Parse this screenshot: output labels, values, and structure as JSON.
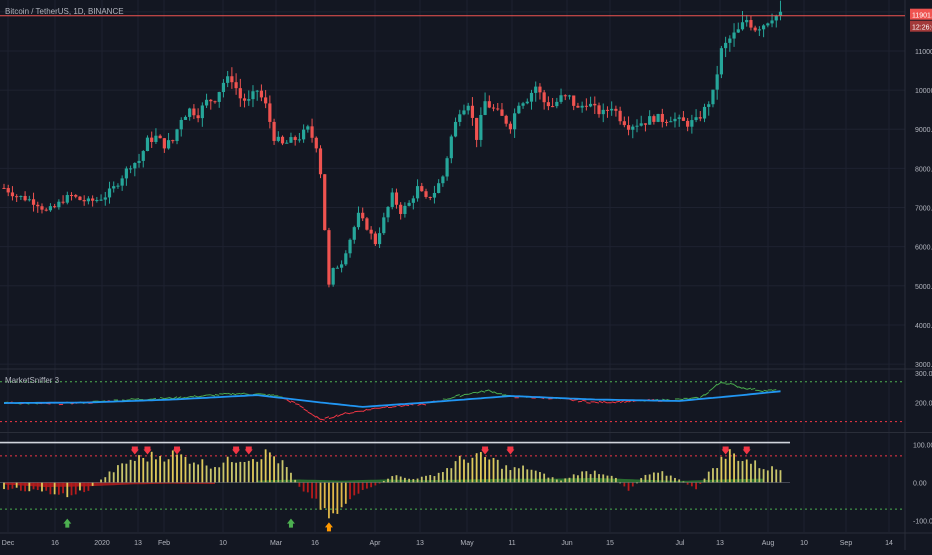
{
  "symbol_title": "Bitcoin / TetherUS, 1D, BINANCE",
  "indicator_title": "MarketSniffer 3",
  "last_price": "11901.30",
  "countdown": "12:26:01",
  "colors": {
    "background": "#131722",
    "grid": "#1e2230",
    "up": "#26a69a",
    "down": "#ef5350",
    "price_line": "#ef5350",
    "text": "#b2b5be",
    "osc_green": "#4caf50",
    "osc_red": "#f23645",
    "osc_blue": "#2196f3",
    "hist_yellow": "#e0c95a",
    "hist_area_green": "#2e7d32",
    "hist_area_red": "#b71c1c",
    "arrow_red": "#f23645",
    "arrow_green": "#4caf50",
    "arrow_orange": "#ff9800"
  },
  "chart_data": [
    {
      "type": "candlestick",
      "title": "Bitcoin / TetherUS, 1D, BINANCE",
      "y_ticks": [
        "12000.00",
        "11000.00",
        "10000.00",
        "9000.00",
        "8000.00",
        "7000.00",
        "6000.00",
        "5000.00",
        "4000.00",
        "3000.00"
      ],
      "ylim": [
        2900,
        12200
      ],
      "x_ticks": [
        "Dec",
        "16",
        "2020",
        "13",
        "Feb",
        "10",
        "Mar",
        "16",
        "Apr",
        "13",
        "May",
        "11",
        "Jun",
        "15",
        "Jul",
        "13",
        "Aug",
        "10",
        "Sep",
        "14"
      ],
      "last_price": 11901.3,
      "price_series_close_approx": [
        [
          0,
          7500
        ],
        [
          3,
          7300
        ],
        [
          6,
          7200
        ],
        [
          8,
          7100
        ],
        [
          10,
          6900
        ],
        [
          12,
          7000
        ],
        [
          14,
          7200
        ],
        [
          16,
          7300
        ],
        [
          18,
          7200
        ],
        [
          20,
          7150
        ],
        [
          22,
          7200
        ],
        [
          24,
          7300
        ],
        [
          26,
          7500
        ],
        [
          28,
          7800
        ],
        [
          30,
          8100
        ],
        [
          32,
          8200
        ],
        [
          34,
          8700
        ],
        [
          36,
          8800
        ],
        [
          38,
          8600
        ],
        [
          40,
          8700
        ],
        [
          42,
          9300
        ],
        [
          44,
          9500
        ],
        [
          46,
          9400
        ],
        [
          48,
          9700
        ],
        [
          50,
          9800
        ],
        [
          52,
          10200
        ],
        [
          54,
          10300
        ],
        [
          56,
          9800
        ],
        [
          58,
          9700
        ],
        [
          60,
          10000
        ],
        [
          62,
          9600
        ],
        [
          64,
          8800
        ],
        [
          66,
          8600
        ],
        [
          68,
          8700
        ],
        [
          70,
          8800
        ],
        [
          72,
          9000
        ],
        [
          74,
          8600
        ],
        [
          75,
          7900
        ],
        [
          77,
          5000
        ],
        [
          78,
          5400
        ],
        [
          80,
          5600
        ],
        [
          82,
          6200
        ],
        [
          84,
          6800
        ],
        [
          86,
          6500
        ],
        [
          88,
          6100
        ],
        [
          90,
          6700
        ],
        [
          92,
          7300
        ],
        [
          94,
          6900
        ],
        [
          96,
          7100
        ],
        [
          98,
          7500
        ],
        [
          100,
          7200
        ],
        [
          102,
          7400
        ],
        [
          104,
          7800
        ],
        [
          106,
          8800
        ],
        [
          108,
          9500
        ],
        [
          110,
          9700
        ],
        [
          112,
          8800
        ],
        [
          114,
          9700
        ],
        [
          116,
          9500
        ],
        [
          118,
          9300
        ],
        [
          120,
          9100
        ],
        [
          122,
          9700
        ],
        [
          124,
          9800
        ],
        [
          126,
          10100
        ],
        [
          128,
          9700
        ],
        [
          130,
          9600
        ],
        [
          132,
          9800
        ],
        [
          134,
          9800
        ],
        [
          136,
          9500
        ],
        [
          138,
          9700
        ],
        [
          140,
          9500
        ],
        [
          142,
          9400
        ],
        [
          144,
          9600
        ],
        [
          146,
          9300
        ],
        [
          148,
          9100
        ],
        [
          150,
          9150
        ],
        [
          152,
          9200
        ],
        [
          154,
          9300
        ],
        [
          156,
          9250
        ],
        [
          158,
          9300
        ],
        [
          160,
          9200
        ],
        [
          162,
          9150
        ],
        [
          164,
          9200
        ],
        [
          166,
          9500
        ],
        [
          168,
          9900
        ],
        [
          170,
          11000
        ],
        [
          172,
          11300
        ],
        [
          174,
          11500
        ],
        [
          176,
          11800
        ],
        [
          178,
          11600
        ],
        [
          180,
          11700
        ],
        [
          182,
          11900
        ],
        [
          184,
          11901
        ]
      ]
    },
    {
      "type": "line",
      "title": "MarketSniffer 3",
      "y_ticks": [
        "300.00",
        "200.00"
      ],
      "ylim": [
        100,
        310
      ],
      "threshold_lines": [
        270,
        135
      ],
      "series": [
        {
          "values_approx": [
            [
              0,
              200
            ],
            [
              10,
              195
            ],
            [
              20,
              200
            ],
            [
              30,
              210
            ],
            [
              40,
              215
            ],
            [
              50,
              225
            ],
            [
              55,
              230
            ],
            [
              60,
              228
            ],
            [
              65,
              222
            ],
            [
              70,
              190
            ],
            [
              75,
              140
            ],
            [
              80,
              160
            ],
            [
              90,
              185
            ],
            [
              100,
              195
            ],
            [
              110,
              230
            ],
            [
              115,
              240
            ],
            [
              120,
              220
            ],
            [
              130,
              215
            ],
            [
              140,
              200
            ],
            [
              150,
              205
            ],
            [
              160,
              210
            ],
            [
              165,
              215
            ],
            [
              170,
              270
            ],
            [
              175,
              250
            ],
            [
              180,
              240
            ],
            [
              184,
              240
            ]
          ]
        },
        {
          "values_approx": [
            [
              0,
              198
            ],
            [
              20,
              200
            ],
            [
              40,
              210
            ],
            [
              60,
              225
            ],
            [
              75,
              200
            ],
            [
              85,
              185
            ],
            [
              100,
              200
            ],
            [
              120,
              222
            ],
            [
              140,
              210
            ],
            [
              160,
              205
            ],
            [
              175,
              225
            ],
            [
              184,
              238
            ]
          ]
        }
      ]
    },
    {
      "type": "bar",
      "y_ticks": [
        "100.00",
        "0.00",
        "-100.00"
      ],
      "ylim": [
        -130,
        130
      ],
      "level_lines": [
        105,
        70,
        -70
      ],
      "histogram_approx": [
        [
          0,
          -15
        ],
        [
          5,
          -20
        ],
        [
          10,
          -25
        ],
        [
          15,
          -35
        ],
        [
          20,
          -20
        ],
        [
          25,
          25
        ],
        [
          30,
          60
        ],
        [
          35,
          70
        ],
        [
          40,
          75
        ],
        [
          45,
          60
        ],
        [
          50,
          45
        ],
        [
          55,
          65
        ],
        [
          60,
          70
        ],
        [
          63,
          80
        ],
        [
          67,
          40
        ],
        [
          70,
          -10
        ],
        [
          75,
          -60
        ],
        [
          78,
          -90
        ],
        [
          82,
          -40
        ],
        [
          88,
          -10
        ],
        [
          92,
          20
        ],
        [
          96,
          10
        ],
        [
          100,
          15
        ],
        [
          104,
          30
        ],
        [
          108,
          60
        ],
        [
          112,
          70
        ],
        [
          116,
          60
        ],
        [
          120,
          35
        ],
        [
          124,
          40
        ],
        [
          128,
          20
        ],
        [
          132,
          5
        ],
        [
          136,
          25
        ],
        [
          140,
          30
        ],
        [
          144,
          20
        ],
        [
          148,
          -20
        ],
        [
          152,
          20
        ],
        [
          156,
          25
        ],
        [
          160,
          10
        ],
        [
          164,
          -20
        ],
        [
          168,
          40
        ],
        [
          172,
          80
        ],
        [
          176,
          60
        ],
        [
          180,
          40
        ],
        [
          184,
          35
        ]
      ],
      "area_green_approx": [
        [
          60,
          5
        ],
        [
          70,
          8
        ],
        [
          80,
          5
        ],
        [
          90,
          8
        ],
        [
          100,
          6
        ],
        [
          110,
          8
        ],
        [
          120,
          10
        ],
        [
          130,
          10
        ],
        [
          140,
          12
        ],
        [
          150,
          8
        ],
        [
          160,
          4
        ],
        [
          170,
          8
        ],
        [
          180,
          10
        ]
      ],
      "area_red_approx": [
        [
          0,
          -5
        ],
        [
          10,
          -12
        ],
        [
          20,
          -10
        ],
        [
          30,
          -5
        ],
        [
          40,
          -3
        ],
        [
          50,
          -4
        ]
      ],
      "signals": [
        {
          "type": "sell",
          "at": 31
        },
        {
          "type": "sell",
          "at": 34
        },
        {
          "type": "sell",
          "at": 41
        },
        {
          "type": "sell",
          "at": 55
        },
        {
          "type": "sell",
          "at": 58
        },
        {
          "type": "sell",
          "at": 114
        },
        {
          "type": "sell",
          "at": 120
        },
        {
          "type": "sell",
          "at": 171
        },
        {
          "type": "sell",
          "at": 176
        },
        {
          "type": "buy",
          "at": 15
        },
        {
          "type": "buy",
          "at": 68
        },
        {
          "type": "buy_orange",
          "at": 77
        }
      ]
    }
  ]
}
